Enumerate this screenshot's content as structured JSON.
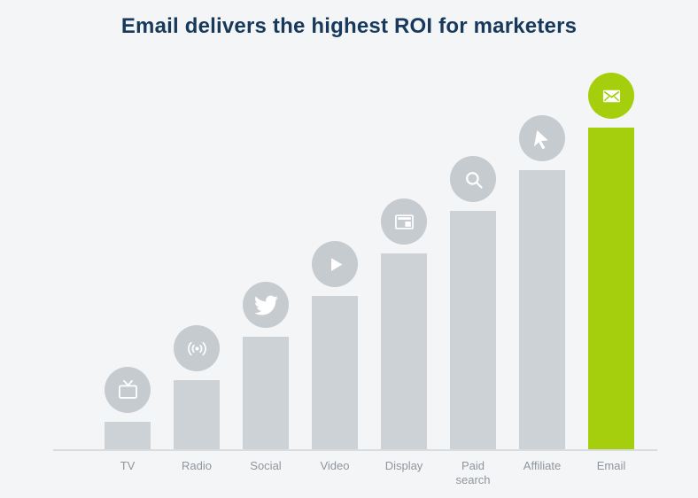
{
  "title": "Email delivers the highest ROI for marketers",
  "colors": {
    "background": "#f4f5f7",
    "title": "#17395c",
    "bar": "#cdd2d6",
    "circle": "#c6cbd0",
    "accent": "#a5ce0d",
    "label": "#8f969d",
    "axis": "#d9dcdf"
  },
  "chart_data": {
    "type": "bar",
    "title": "Email delivers the highest ROI for marketers",
    "categories": [
      "TV",
      "Radio",
      "Social",
      "Video",
      "Display",
      "Paid search",
      "Affiliate",
      "Email"
    ],
    "values": [
      31,
      78,
      127,
      173,
      221,
      269,
      315,
      363
    ],
    "value_unit": "relative ROI (axis unlabeled; values estimated from bar heights in px)",
    "highlight_category": "Email",
    "icons": [
      "tv-icon",
      "radio-icon",
      "twitter-icon",
      "play-icon",
      "display-ad-icon",
      "search-icon",
      "cursor-icon",
      "mail-icon"
    ],
    "xlabel": "",
    "ylabel": "",
    "grid": false,
    "legend": false
  }
}
